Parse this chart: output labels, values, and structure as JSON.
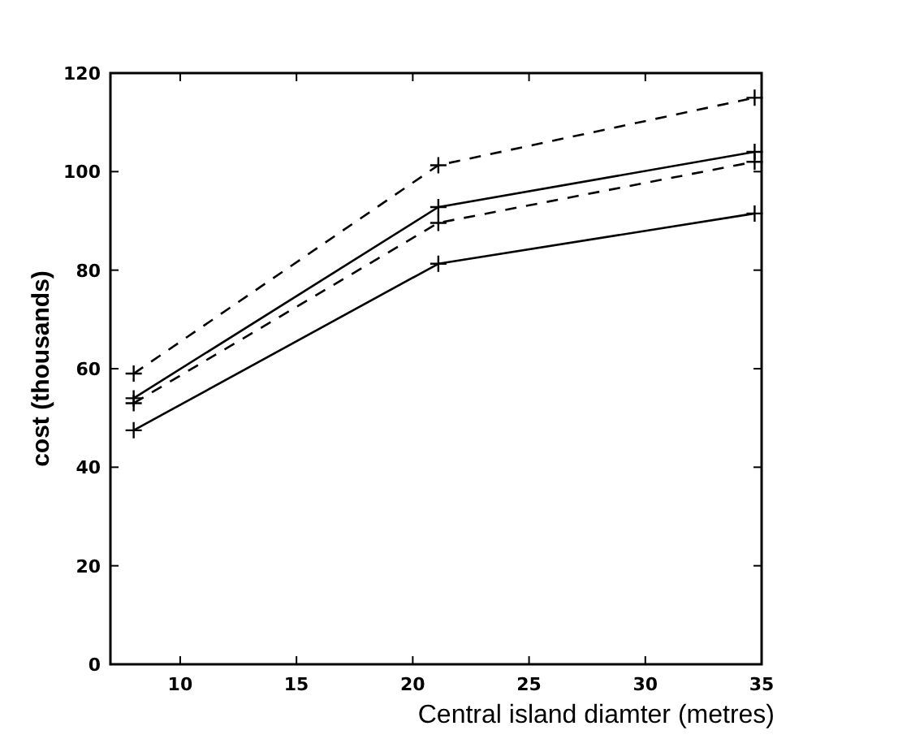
{
  "chart_data": {
    "type": "line",
    "xlabel": "Central island diamter (metres)",
    "ylabel": "cost (thousands)",
    "x": [
      8,
      21.1,
      34.7
    ],
    "series": [
      {
        "color": "#000000",
        "line_style": "dashed",
        "values": [
          59,
          101.3,
          115
        ]
      },
      {
        "color": "#000000",
        "line_style": "solid",
        "values": [
          54,
          92.8,
          104
        ]
      },
      {
        "color": "#000000",
        "line_style": "dashed",
        "values": [
          53,
          89.6,
          102
        ]
      },
      {
        "color": "#000000",
        "line_style": "solid",
        "values": [
          47.5,
          81.3,
          91.5
        ]
      }
    ],
    "marker": "cross",
    "xlim": [
      7,
      35
    ],
    "xticks": [
      10,
      15,
      20,
      25,
      30,
      35
    ],
    "ylim": [
      0,
      120
    ],
    "yticks": [
      0,
      20,
      40,
      60,
      80,
      100,
      120
    ],
    "grid": false
  }
}
